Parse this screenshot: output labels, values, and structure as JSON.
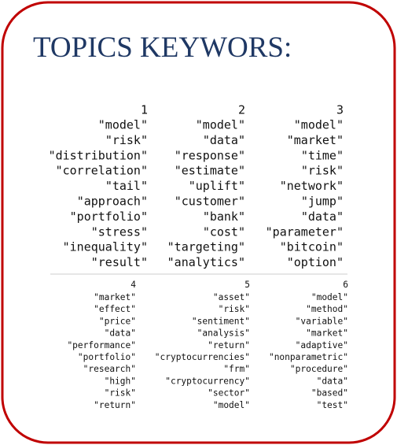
{
  "title": "TOPICS KEYWORS:",
  "tables": [
    {
      "headers": [
        "1",
        "2",
        "3"
      ],
      "columns": [
        [
          "\"model\"",
          "\"risk\"",
          "\"distribution\"",
          "\"correlation\"",
          "\"tail\"",
          "\"approach\"",
          "\"portfolio\"",
          "\"stress\"",
          "\"inequality\"",
          "\"result\""
        ],
        [
          "\"model\"",
          "\"data\"",
          "\"response\"",
          "\"estimate\"",
          "\"uplift\"",
          "\"customer\"",
          "\"bank\"",
          "\"cost\"",
          "\"targeting\"",
          "\"analytics\""
        ],
        [
          "\"model\"",
          "\"market\"",
          "\"time\"",
          "\"risk\"",
          "\"network\"",
          "\"jump\"",
          "\"data\"",
          "\"parameter\"",
          "\"bitcoin\"",
          "\"option\""
        ]
      ]
    },
    {
      "headers": [
        "4",
        "5",
        "6"
      ],
      "columns": [
        [
          "\"market\"",
          "\"effect\"",
          "\"price\"",
          "\"data\"",
          "\"performance\"",
          "\"portfolio\"",
          "\"research\"",
          "\"high\"",
          "\"risk\"",
          "\"return\""
        ],
        [
          "\"asset\"",
          "\"risk\"",
          "\"sentiment\"",
          "\"analysis\"",
          "\"return\"",
          "\"cryptocurrencies\"",
          "\"frm\"",
          "\"cryptocurrency\"",
          "\"sector\"",
          "\"model\""
        ],
        [
          "\"model\"",
          "\"method\"",
          "\"variable\"",
          "\"market\"",
          "\"adaptive\"",
          "\"nonparametric\"",
          "\"procedure\"",
          "\"data\"",
          "\"based\"",
          "\"test\""
        ]
      ]
    }
  ]
}
